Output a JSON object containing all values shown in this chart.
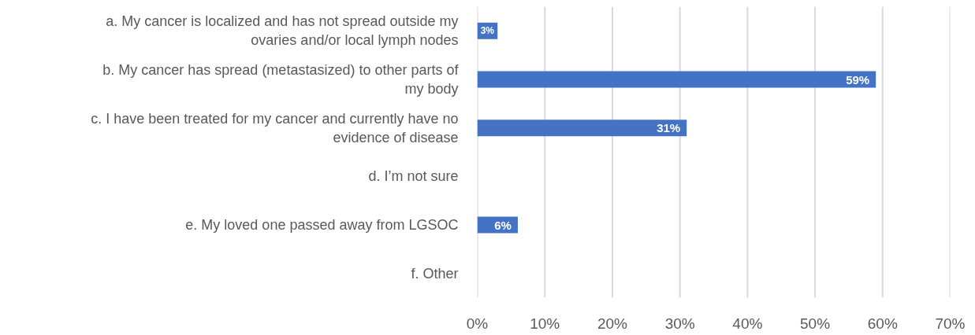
{
  "chart_data": {
    "type": "bar",
    "orientation": "horizontal",
    "categories": [
      "a. My cancer is localized and has not spread outside my ovaries and/or local lymph nodes",
      "b. My cancer has spread (metastasized) to other parts of my body",
      "c. I have been treated for my cancer and currently have no evidence of disease",
      "d. I’m not sure",
      "e. My loved one passed away from LGSOC",
      "f. Other"
    ],
    "values": [
      3,
      59,
      31,
      null,
      6,
      null
    ],
    "value_labels": [
      "3%",
      "59%",
      "31%",
      null,
      "6%",
      null
    ],
    "color": "#4472c4",
    "xlim": [
      0,
      70
    ],
    "xticks": [
      {
        "value": 0,
        "label": "0%"
      },
      {
        "value": 10,
        "label": "10%"
      },
      {
        "value": 20,
        "label": "20%"
      },
      {
        "value": 30,
        "label": "30%"
      },
      {
        "value": 40,
        "label": "40%"
      },
      {
        "value": 50,
        "label": "50%"
      },
      {
        "value": 60,
        "label": "60%"
      },
      {
        "value": 70,
        "label": "70%"
      }
    ],
    "grid": "x"
  }
}
